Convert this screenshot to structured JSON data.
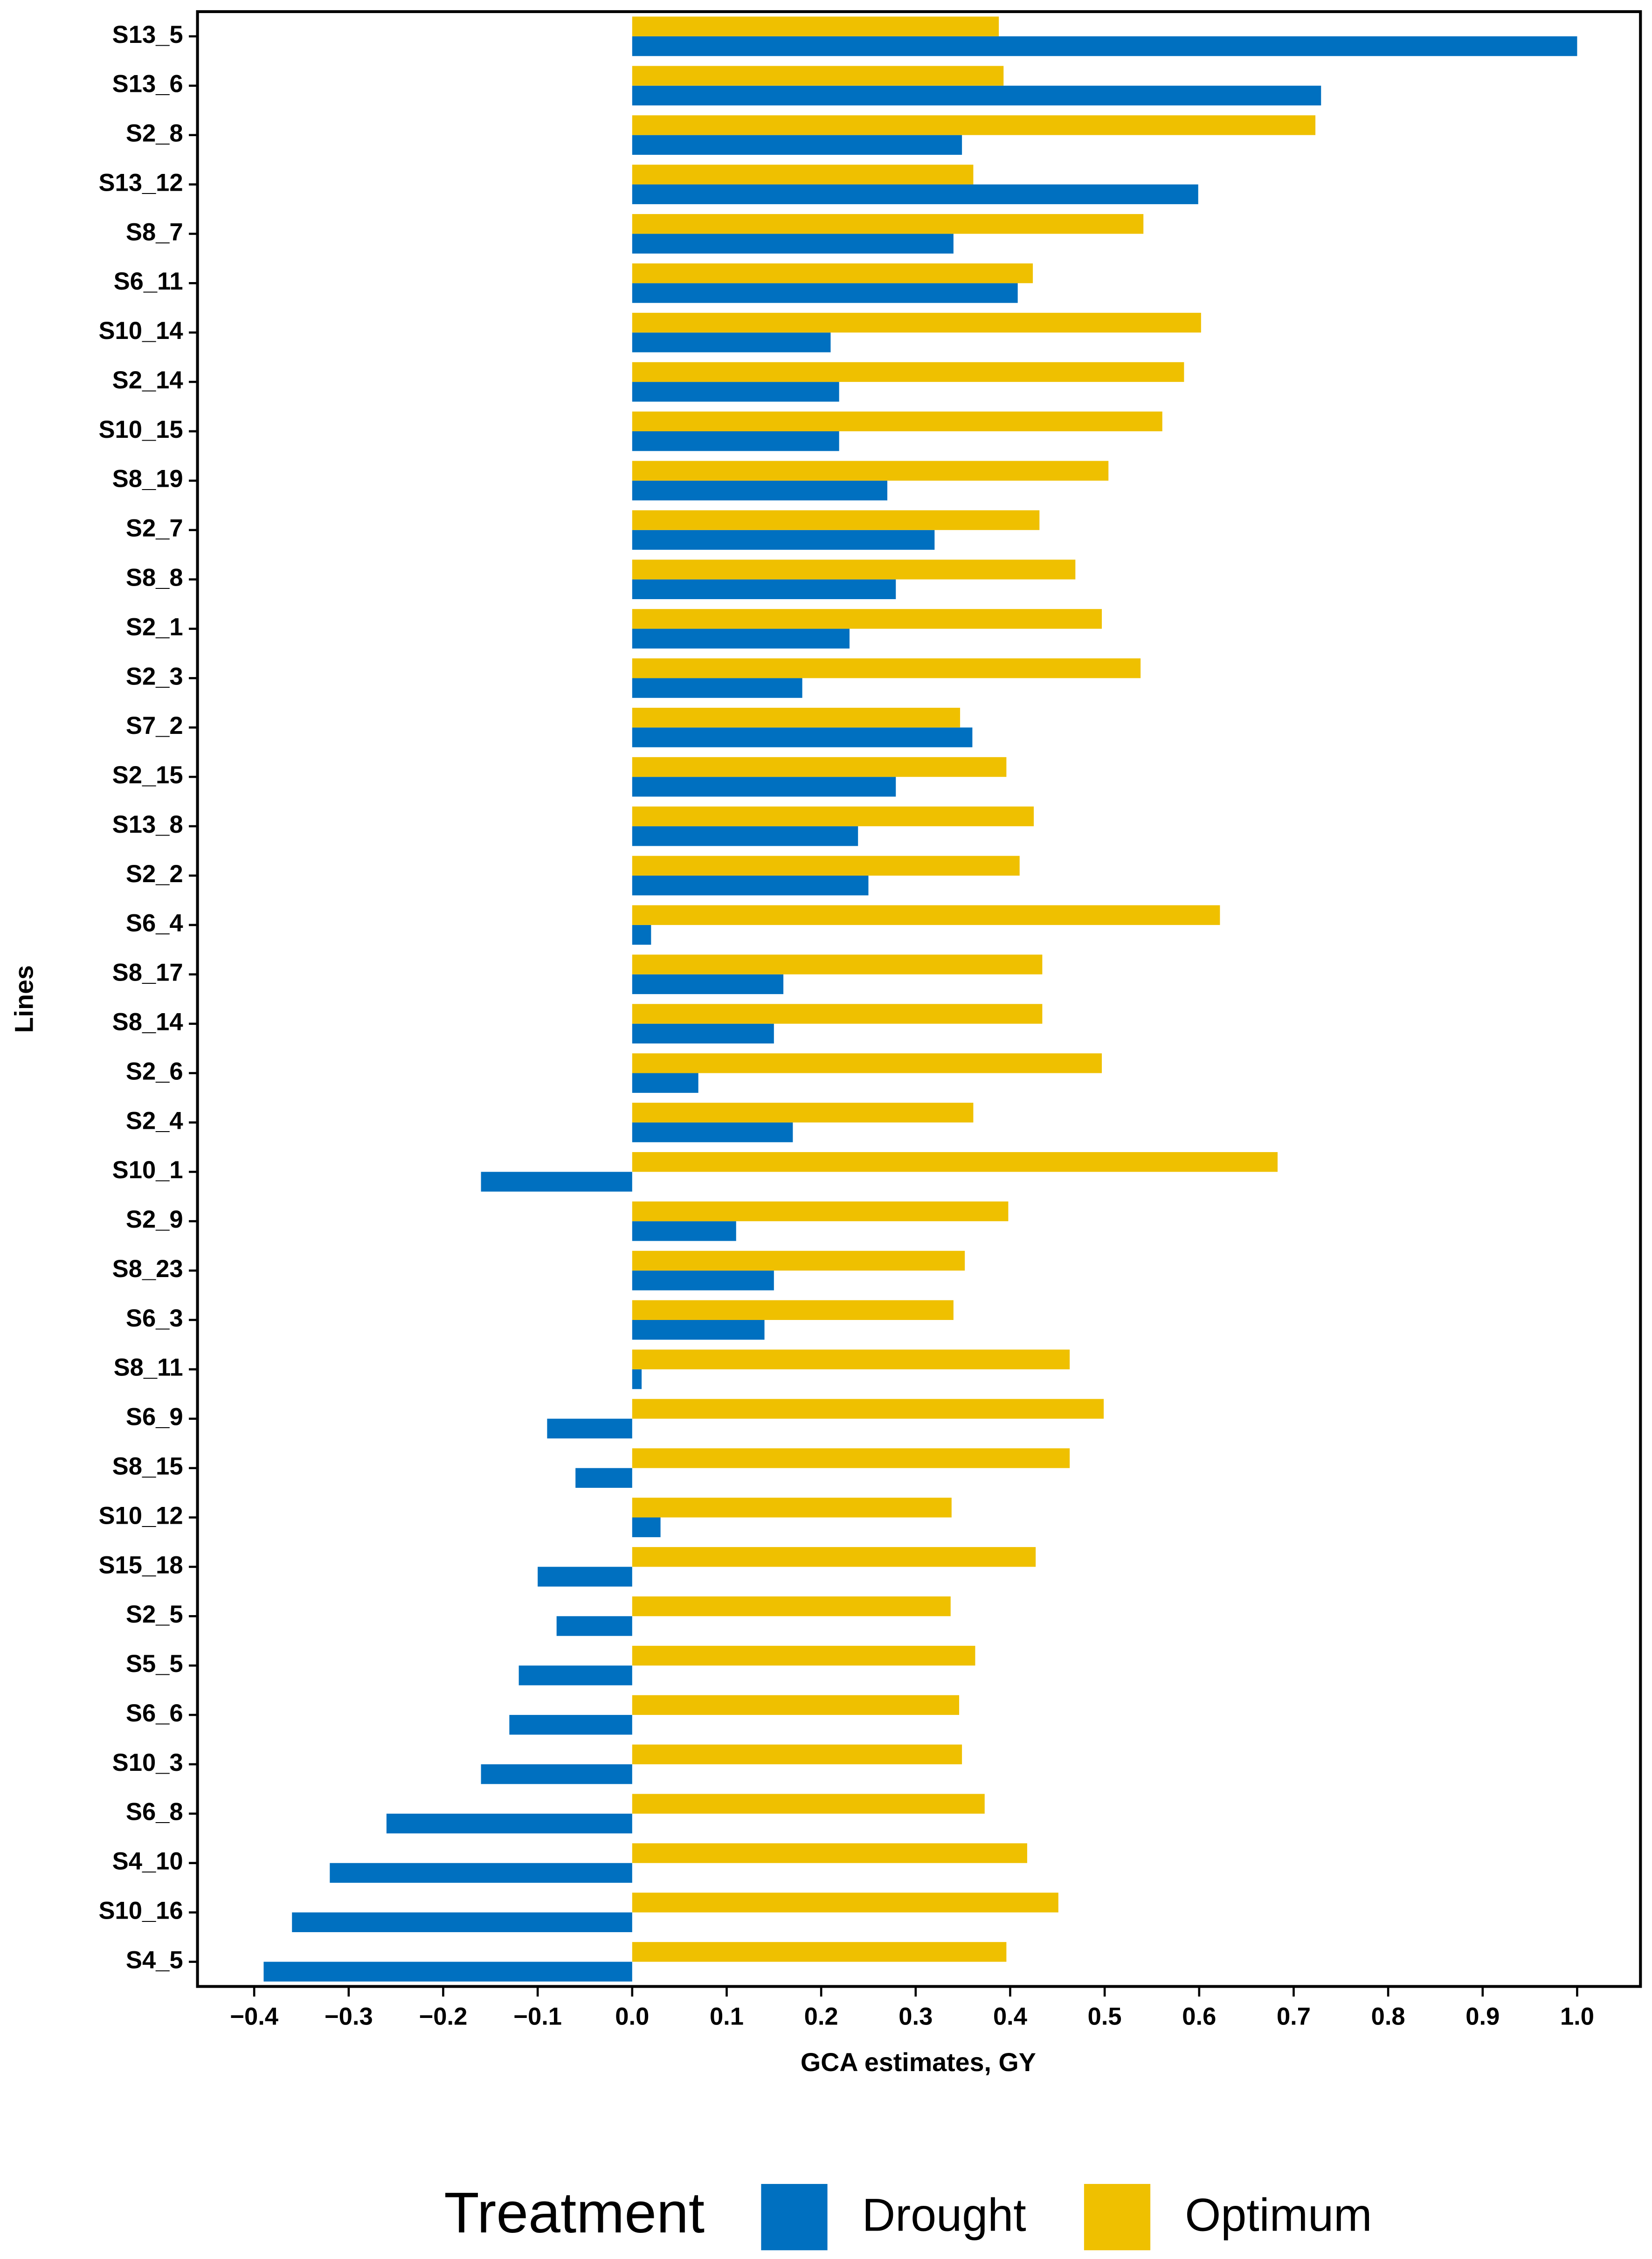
{
  "chart_data": {
    "type": "bar",
    "orientation": "horizontal",
    "xlabel": "GCA estimates, GY",
    "ylabel": "Lines",
    "legend_title": "Treatment",
    "legend": "bottom",
    "categories": [
      "S13_5",
      "S13_6",
      "S2_8",
      "S13_12",
      "S8_7",
      "S6_11",
      "S10_14",
      "S2_14",
      "S10_15",
      "S8_19",
      "S2_7",
      "S8_8",
      "S2_1",
      "S2_3",
      "S7_2",
      "S2_15",
      "S13_8",
      "S2_2",
      "S6_4",
      "S8_17",
      "S8_14",
      "S2_6",
      "S2_4",
      "S10_1",
      "S2_9",
      "S8_23",
      "S6_3",
      "S8_11",
      "S6_9",
      "S8_15",
      "S10_12",
      "S15_18",
      "S2_5",
      "S5_5",
      "S6_6",
      "S10_3",
      "S6_8",
      "S4_10",
      "S10_16",
      "S4_5"
    ],
    "series": [
      {
        "name": "Drought",
        "color": "#0070c0",
        "values": [
          1.0,
          0.729,
          0.349,
          0.599,
          0.34,
          0.408,
          0.21,
          0.219,
          0.219,
          0.27,
          0.32,
          0.279,
          0.23,
          0.18,
          0.36,
          0.279,
          0.239,
          0.25,
          0.02,
          0.16,
          0.15,
          0.07,
          0.17,
          -0.16,
          0.11,
          0.15,
          0.14,
          0.01,
          -0.09,
          -0.06,
          0.03,
          -0.1,
          -0.08,
          -0.12,
          -0.13,
          -0.16,
          -0.26,
          -0.32,
          -0.36,
          -0.39
        ]
      },
      {
        "name": "Optimum",
        "color": "#efc000",
        "values": [
          0.388,
          0.393,
          0.723,
          0.361,
          0.541,
          0.424,
          0.602,
          0.584,
          0.561,
          0.504,
          0.431,
          0.469,
          0.497,
          0.538,
          0.347,
          0.396,
          0.425,
          0.41,
          0.622,
          0.434,
          0.434,
          0.497,
          0.361,
          0.683,
          0.398,
          0.352,
          0.34,
          0.463,
          0.499,
          0.463,
          0.338,
          0.427,
          0.337,
          0.363,
          0.346,
          0.349,
          0.373,
          0.418,
          0.451,
          0.396
        ]
      }
    ],
    "xlim": [
      -0.46,
      1.067
    ],
    "xticks": [
      {
        "value": -0.4,
        "label": "−0.4"
      },
      {
        "value": -0.3,
        "label": "−0.3"
      },
      {
        "value": -0.2,
        "label": "−0.2"
      },
      {
        "value": -0.1,
        "label": "−0.1"
      },
      {
        "value": 0,
        "label": "0.0"
      },
      0.1,
      0.2,
      0.3,
      0.4,
      0.5,
      0.6,
      0.7,
      0.8,
      0.9,
      {
        "value": 1,
        "label": "1.0"
      }
    ]
  }
}
